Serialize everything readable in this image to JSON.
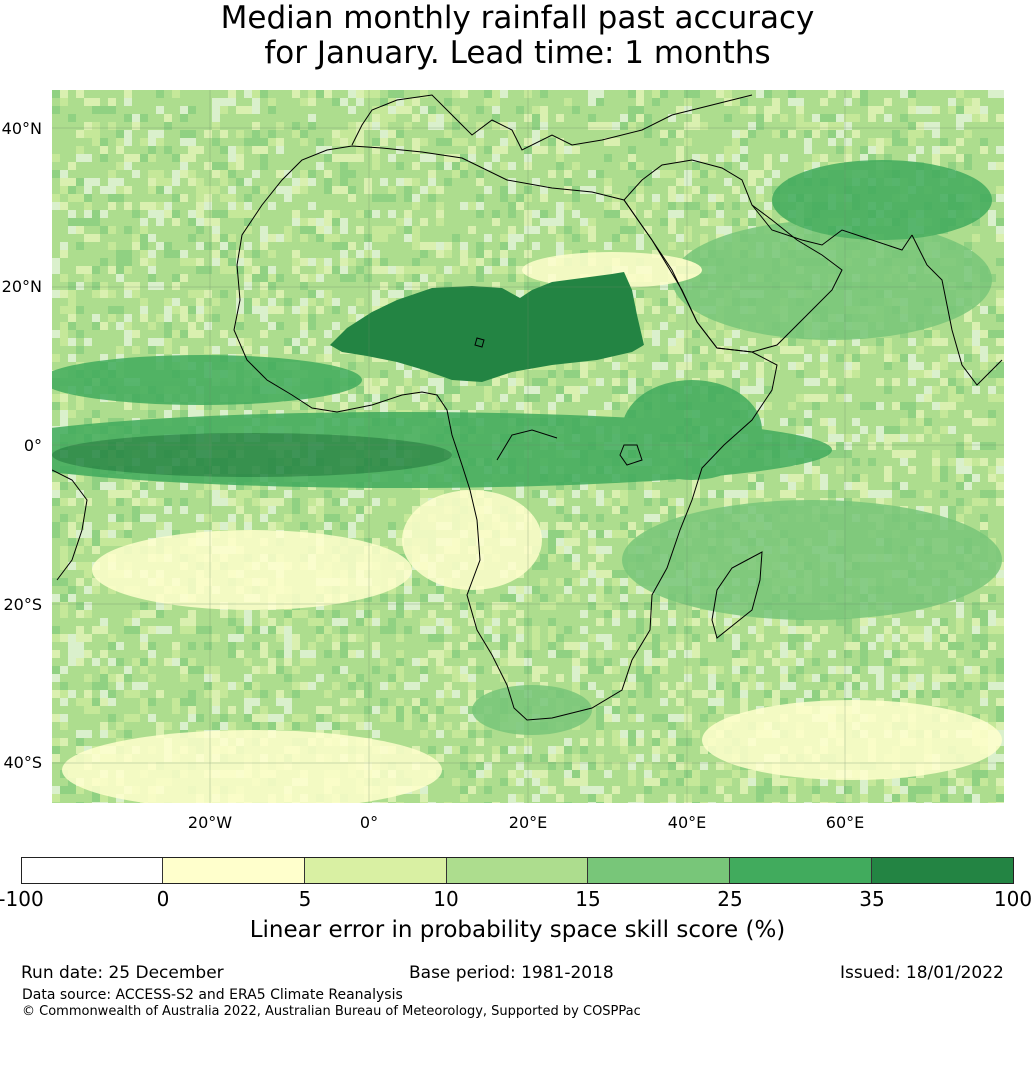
{
  "title_line1": "Median monthly rainfall past accuracy",
  "title_line2": "for January. Lead time: 1 months",
  "map": {
    "lat_labels": [
      "40°N",
      "20°N",
      "0°",
      "20°S",
      "40°S"
    ],
    "lon_labels": [
      "20°W",
      "0°",
      "20°E",
      "40°E",
      "60°E"
    ]
  },
  "colorbar": {
    "ticks": [
      "-100",
      "0",
      "5",
      "10",
      "15",
      "25",
      "35",
      "100"
    ],
    "colors": [
      "#ffffff",
      "#ffffcc",
      "#d9f0a3",
      "#addd8e",
      "#78c679",
      "#41ab5d",
      "#238443"
    ],
    "label": "Linear error in probability space skill score (%)"
  },
  "footer": {
    "run_date": "Run date: 25 December",
    "base_period": "Base period: 1981-2018",
    "issued": "Issued: 18/01/2022",
    "data_source": "Data source: ACCESS-S2 and ERA5 Climate Reanalysis",
    "copyright": "© Commonwealth of Australia 2022, Australian Bureau of Meteorology, Supported by COSPPac"
  }
}
